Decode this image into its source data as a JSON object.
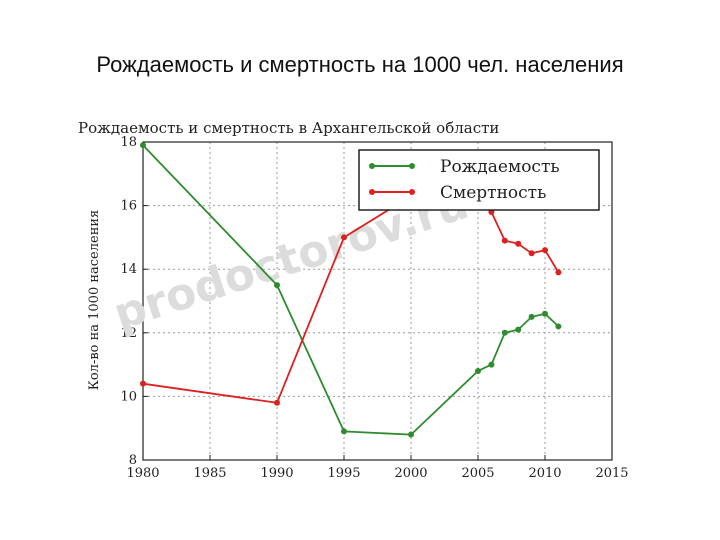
{
  "slide": {
    "title": "Рождаемость и смертность на 1000 чел. населения"
  },
  "watermark": "prodoctorov.ru",
  "chart_data": {
    "type": "line",
    "title": "Рождаемость и смертность в Архангельской области",
    "ylabel": "Кол-во на 1000 населения",
    "xlabel": "",
    "xlim": [
      1980,
      2015
    ],
    "ylim": [
      8,
      18
    ],
    "x_ticks": [
      1980,
      1985,
      1990,
      1995,
      2000,
      2005,
      2010,
      2015
    ],
    "y_ticks": [
      8,
      10,
      12,
      14,
      16,
      18
    ],
    "grid": true,
    "legend": "top-right",
    "series": [
      {
        "name": "Рождаемость",
        "color": "#2e8b2e",
        "points": [
          [
            1980,
            17.9
          ],
          [
            1990,
            13.5
          ],
          [
            1995,
            8.9
          ],
          [
            2000,
            8.8
          ],
          [
            2005,
            10.8
          ],
          [
            2006,
            11.0
          ],
          [
            2007,
            12.0
          ],
          [
            2008,
            12.1
          ],
          [
            2009,
            12.5
          ],
          [
            2010,
            12.6
          ],
          [
            2011,
            12.2
          ]
        ]
      },
      {
        "name": "Смертность",
        "color": "#dd2020",
        "points": [
          [
            1980,
            10.4
          ],
          [
            1990,
            9.8
          ],
          [
            1995,
            15.0
          ],
          [
            2000,
            16.3
          ],
          [
            2005,
            16.3
          ],
          [
            2006,
            15.8
          ],
          [
            2007,
            14.9
          ],
          [
            2008,
            14.8
          ],
          [
            2009,
            14.5
          ],
          [
            2010,
            14.6
          ],
          [
            2011,
            13.9
          ]
        ]
      }
    ]
  }
}
